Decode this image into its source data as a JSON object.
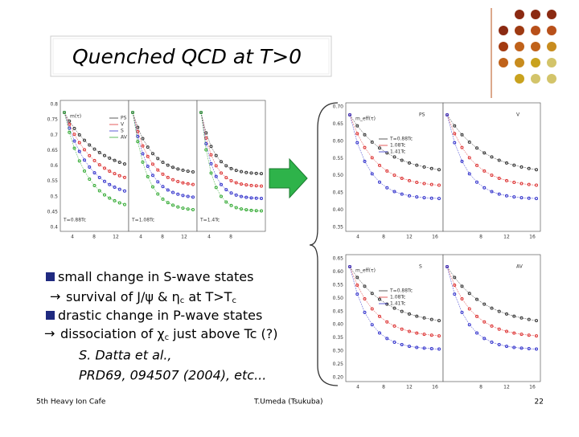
{
  "title": "Quenched QCD at T>0",
  "bullets": [
    {
      "parts": [
        "small change in S-wave states"
      ]
    },
    {
      "parts": [
        "survival of J/ψ & η",
        "c",
        " at T>T",
        "c"
      ]
    },
    {
      "parts": [
        "drastic change in P-wave states"
      ]
    },
    {
      "parts": [
        "dissociation of χ",
        "c",
        " just above Tc (?)"
      ]
    }
  ],
  "citation": [
    "S. Datta et al.,",
    "PRD69, 094507 (2004),  etc..."
  ],
  "footer": {
    "left": "5th Heavy Ion Cafe",
    "center": "T.Umeda (Tsukuba)",
    "page": "22"
  },
  "plots": [
    {
      "yticks": [
        "0.8",
        "0.75",
        "0.7",
        "0.65",
        "0.6",
        "0.55",
        "0.5",
        "0.45",
        "0.4"
      ],
      "xticks": [
        "4",
        "8",
        "12",
        "4",
        "8",
        "12",
        "4",
        "8"
      ],
      "ylabel": "m(τ)",
      "legend": [
        "PS",
        "V",
        "S",
        "AV"
      ],
      "panel_labels": [
        "T=0.88Tc",
        "T=1.08Tc",
        "T=1.4Tc"
      ]
    },
    {
      "yticks": [
        "0.70",
        "0.65",
        "0.60",
        "0.55",
        "0.50",
        "0.45",
        "0.40",
        "0.35"
      ],
      "xticks": [
        "4",
        "8",
        "12",
        "16",
        "8",
        "12",
        "16"
      ],
      "ylabel": "m_eff(τ)",
      "panel_labels": [
        "PS",
        "V"
      ],
      "legend": [
        "T=0.88Tc",
        "1.08Tc",
        "1.41Tc"
      ]
    },
    {
      "yticks": [
        "0.65",
        "0.60",
        "0.55",
        "0.50",
        "0.45",
        "0.40",
        "0.35",
        "0.30",
        "0.25",
        "0.20"
      ],
      "xticks": [
        "4",
        "8",
        "12",
        "16",
        "8",
        "12",
        "16"
      ],
      "ylabel": "m_eff(τ)",
      "panel_labels": [
        "S",
        "AV"
      ],
      "legend": [
        "T=0.88Tc",
        "1.08Tc",
        "1.41Tc"
      ]
    }
  ]
}
